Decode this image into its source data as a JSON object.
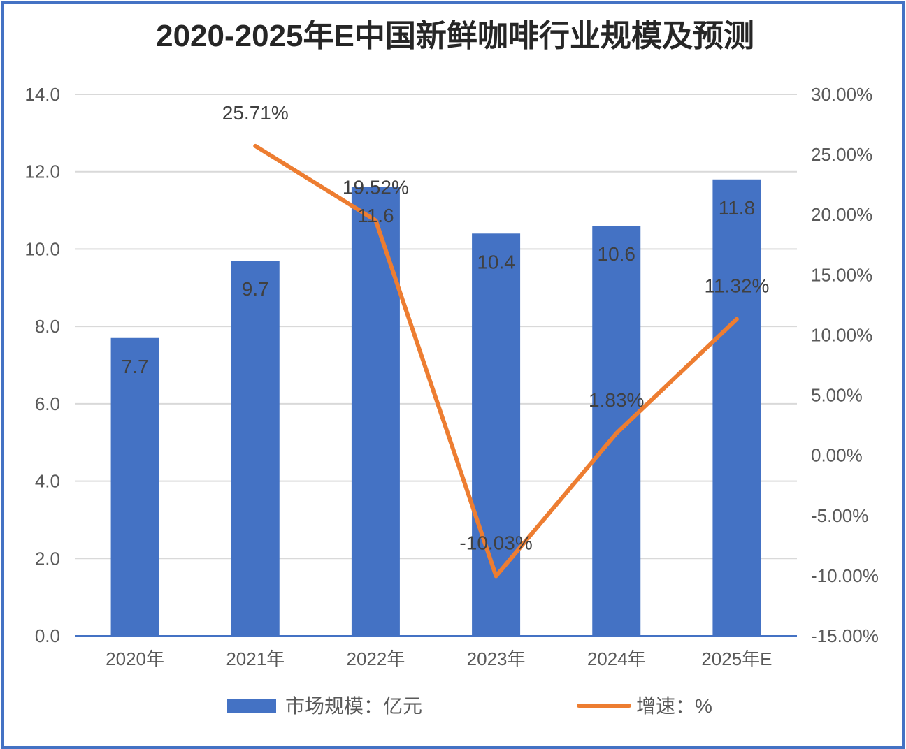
{
  "chart_data": {
    "type": "bar+line",
    "title": "2020-2025年E中国新鲜咖啡行业规模及预测",
    "categories": [
      "2020年",
      "2021年",
      "2022年",
      "2023年",
      "2024年",
      "2025年E"
    ],
    "series": [
      {
        "name": "市场规模：亿元",
        "type": "bar",
        "axis": "left",
        "color": "#4472C4",
        "values": [
          7.7,
          9.7,
          11.6,
          10.4,
          10.6,
          11.8
        ],
        "labels": [
          "7.7",
          "9.7",
          "11.6",
          "10.4",
          "10.6",
          "11.8"
        ]
      },
      {
        "name": "增速：%",
        "type": "line",
        "axis": "right",
        "color": "#ED7D31",
        "values": [
          null,
          25.71,
          19.52,
          -10.03,
          1.83,
          11.32
        ],
        "labels": [
          "",
          "25.71%",
          "19.52%",
          "-10.03%",
          "1.83%",
          "11.32%"
        ]
      }
    ],
    "left_axis": {
      "ylim": [
        0,
        14
      ],
      "ticks": [
        "0.0",
        "2.0",
        "4.0",
        "6.0",
        "8.0",
        "10.0",
        "12.0",
        "14.0"
      ]
    },
    "right_axis": {
      "ylim": [
        -15,
        30
      ],
      "ticks": [
        "-15.00%",
        "-10.00%",
        "-5.00%",
        "0.00%",
        "5.00%",
        "10.00%",
        "15.00%",
        "20.00%",
        "25.00%",
        "30.00%"
      ]
    },
    "grid": true,
    "legend": "bottom"
  }
}
